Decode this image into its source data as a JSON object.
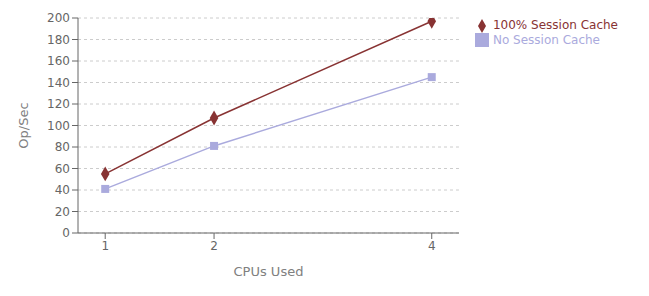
{
  "chart_data": {
    "type": "line",
    "x": [
      1,
      2,
      4
    ],
    "series": [
      {
        "name": "No Session Cache",
        "color": "#aaaadd",
        "marker": "square",
        "line_style": "solid",
        "values": [
          41,
          81,
          145
        ]
      },
      {
        "name": "100% Session Cache",
        "color": "#883333",
        "marker": "diamond",
        "line_style": "solid",
        "values": [
          55,
          107,
          197
        ]
      }
    ],
    "xlabel": "CPUs Used",
    "ylabel": "Op/Sec",
    "xlim": [
      0.75,
      4.25
    ],
    "ylim": [
      0,
      200
    ],
    "xticks": [
      1,
      2,
      4
    ],
    "yticks": [
      0,
      20,
      40,
      60,
      80,
      100,
      120,
      140,
      160,
      180,
      200
    ],
    "grid": true,
    "legend": "right"
  }
}
